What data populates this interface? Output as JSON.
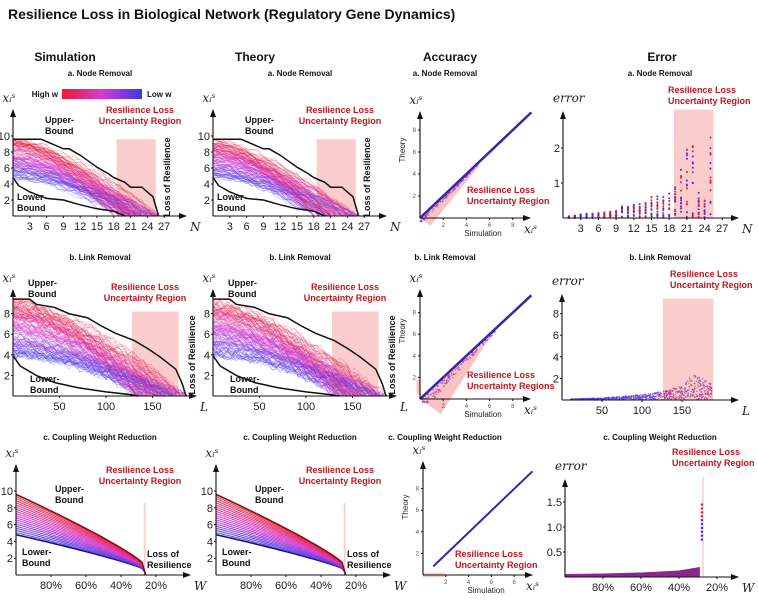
{
  "title": "Resilience Loss in Biological Network (Regulatory Gene Dynamics)",
  "columns": [
    "Simulation",
    "Theory",
    "Accuracy",
    "Error"
  ],
  "colors": {
    "high_w": "#ee1c2e",
    "mid_w": "#d63ad0",
    "low_w": "#3a3ae6",
    "uncertainty": "#f9c3c3",
    "annotation_red": "#c4141c"
  },
  "legend": {
    "high": "High w",
    "low": "Low w"
  },
  "labels": {
    "upper": [
      "Upper-",
      "Bound"
    ],
    "lower": [
      "Lower-",
      "Bound"
    ],
    "region": [
      "Resilience Loss",
      "Uncertainty Region"
    ],
    "region_plural": [
      "Resilience Loss",
      "Uncertainty Regions"
    ],
    "loss": "Loss of Resilience",
    "loss_lines": [
      "Loss of",
      "Resilience"
    ],
    "theory": "Theory",
    "simulation": "Simulation"
  },
  "chart_data": [
    {
      "type": "line",
      "column": "Simulation",
      "title": "a. Node Removal",
      "x_label": "N",
      "y_label": "xᵢˢ",
      "x_ticks": [
        3,
        6,
        9,
        12,
        15,
        18,
        21,
        24,
        27
      ],
      "y_ticks": [
        2,
        4,
        6,
        8,
        10
      ],
      "xlim": [
        0,
        28
      ],
      "ylim": [
        0,
        10.5
      ],
      "uncertainty_region": {
        "x": [
          18.5,
          25.5
        ],
        "y": [
          0,
          9.6
        ]
      },
      "upper_bound": [
        [
          0,
          9.6
        ],
        [
          5,
          9.6
        ],
        [
          6,
          9.3
        ],
        [
          9,
          8.4
        ],
        [
          10,
          8.4
        ],
        [
          12,
          7.6
        ],
        [
          14,
          6.6
        ],
        [
          15,
          6.1
        ],
        [
          17,
          5.3
        ],
        [
          18,
          4.8
        ],
        [
          20,
          4.2
        ],
        [
          21,
          3.6
        ],
        [
          23,
          3.6
        ],
        [
          25,
          2.4
        ],
        [
          26,
          0
        ]
      ],
      "lower_bound": [
        [
          0,
          4.8
        ],
        [
          1,
          3.8
        ],
        [
          3,
          3.0
        ],
        [
          6,
          2.2
        ],
        [
          9,
          2.0
        ],
        [
          12,
          1.4
        ],
        [
          15,
          0.9
        ],
        [
          18,
          0.6
        ],
        [
          19,
          0.3
        ],
        [
          20,
          0
        ]
      ]
    },
    {
      "type": "line",
      "column": "Theory",
      "title": "a. Node Removal",
      "x_label": "N",
      "y_label": "xᵢˢ",
      "x_ticks": [
        3,
        6,
        9,
        12,
        15,
        18,
        21,
        24,
        27
      ],
      "y_ticks": [
        2,
        4,
        6,
        8,
        10
      ],
      "xlim": [
        0,
        28
      ],
      "ylim": [
        0,
        10.5
      ],
      "uncertainty_region": {
        "x": [
          18.5,
          25.5
        ],
        "y": [
          0,
          9.6
        ]
      },
      "upper_bound": [
        [
          0,
          9.6
        ],
        [
          5,
          9.6
        ],
        [
          6,
          9.3
        ],
        [
          9,
          8.4
        ],
        [
          10,
          8.4
        ],
        [
          12,
          7.6
        ],
        [
          14,
          6.6
        ],
        [
          15,
          6.1
        ],
        [
          17,
          5.3
        ],
        [
          18,
          4.8
        ],
        [
          20,
          4.2
        ],
        [
          21,
          3.6
        ],
        [
          23,
          3.6
        ],
        [
          25,
          2.4
        ],
        [
          26,
          0
        ]
      ],
      "lower_bound": [
        [
          0,
          4.8
        ],
        [
          1,
          3.8
        ],
        [
          3,
          3.0
        ],
        [
          6,
          2.2
        ],
        [
          9,
          2.0
        ],
        [
          12,
          1.4
        ],
        [
          15,
          0.9
        ],
        [
          18,
          0.6
        ],
        [
          19,
          0.3
        ],
        [
          20,
          0
        ]
      ]
    },
    {
      "type": "scatter",
      "column": "Accuracy",
      "title": "a. Node Removal",
      "x_label": "xᵢˢ",
      "y_label": "xᵢˢ",
      "x_ticks": [
        2,
        4,
        6,
        8
      ],
      "y_ticks": [
        2,
        4,
        6,
        8
      ],
      "xlim": [
        0,
        9.6
      ],
      "ylim": [
        0,
        9.6
      ],
      "diagonal": [
        [
          0,
          0
        ],
        [
          9.6,
          9.6
        ]
      ],
      "uncertainty_region": [
        [
          0,
          0
        ],
        [
          5.3,
          5.0
        ],
        [
          0.9,
          -0.7
        ]
      ]
    },
    {
      "type": "scatter",
      "column": "Error",
      "title": "a. Node Removal",
      "x_label": "N",
      "y_label": "error",
      "x_ticks": [
        3,
        6,
        9,
        12,
        15,
        18,
        21,
        24,
        27
      ],
      "y_ticks": [
        1,
        2
      ],
      "xlim": [
        0,
        28
      ],
      "ylim": [
        0,
        3
      ],
      "uncertainty_region": {
        "x": [
          18.8,
          25.5
        ],
        "y": [
          0,
          3.1
        ]
      },
      "max_error_by_N": [
        0.05,
        0.07,
        0.1,
        0.12,
        0.12,
        0.14,
        0.16,
        0.18,
        0.2,
        0.33,
        0.32,
        0.38,
        0.4,
        0.43,
        0.6,
        0.62,
        0.6,
        0.7,
        0.88,
        1.38,
        1.95,
        2.05,
        0.72,
        0.5,
        2.3
      ]
    },
    {
      "type": "line",
      "column": "Simulation",
      "title": "b. Link Removal",
      "x_label": "L",
      "y_label": "xᵢˢ",
      "x_ticks": [
        50,
        100,
        150
      ],
      "y_ticks": [
        2,
        4,
        6,
        8
      ],
      "xlim": [
        0,
        195
      ],
      "ylim": [
        0,
        9.5
      ],
      "uncertainty_region": {
        "x": [
          128,
          178
        ],
        "y": [
          0,
          8.2
        ]
      },
      "upper_bound": [
        [
          0,
          9.4
        ],
        [
          18,
          9.4
        ],
        [
          25,
          8.9
        ],
        [
          45,
          8.6
        ],
        [
          60,
          8.0
        ],
        [
          80,
          7.6
        ],
        [
          95,
          6.8
        ],
        [
          110,
          6.1
        ],
        [
          130,
          5.4
        ],
        [
          145,
          4.6
        ],
        [
          158,
          3.8
        ],
        [
          168,
          3.1
        ],
        [
          175,
          2.6
        ],
        [
          182,
          1.2
        ],
        [
          186,
          0
        ]
      ],
      "lower_bound": [
        [
          0,
          3.9
        ],
        [
          8,
          2.9
        ],
        [
          25,
          2.0
        ],
        [
          45,
          1.3
        ],
        [
          70,
          0.8
        ],
        [
          100,
          0.4
        ],
        [
          125,
          0.15
        ],
        [
          135,
          0
        ]
      ]
    },
    {
      "type": "line",
      "column": "Theory",
      "title": "b. Link Removal",
      "x_label": "L",
      "y_label": "xᵢˢ",
      "x_ticks": [
        50,
        100,
        150
      ],
      "y_ticks": [
        2,
        4,
        6,
        8
      ],
      "xlim": [
        0,
        195
      ],
      "ylim": [
        0,
        9.5
      ],
      "uncertainty_region": {
        "x": [
          128,
          178
        ],
        "y": [
          0,
          8.2
        ]
      },
      "upper_bound": [
        [
          0,
          9.4
        ],
        [
          18,
          9.4
        ],
        [
          25,
          8.9
        ],
        [
          45,
          8.6
        ],
        [
          60,
          8.0
        ],
        [
          80,
          7.6
        ],
        [
          95,
          6.8
        ],
        [
          110,
          6.1
        ],
        [
          130,
          5.4
        ],
        [
          145,
          4.6
        ],
        [
          158,
          3.8
        ],
        [
          168,
          3.1
        ],
        [
          175,
          2.6
        ],
        [
          182,
          1.2
        ],
        [
          186,
          0
        ]
      ],
      "lower_bound": [
        [
          0,
          3.9
        ],
        [
          8,
          2.9
        ],
        [
          25,
          2.0
        ],
        [
          45,
          1.3
        ],
        [
          70,
          0.8
        ],
        [
          100,
          0.4
        ],
        [
          125,
          0.15
        ],
        [
          135,
          0
        ]
      ]
    },
    {
      "type": "scatter",
      "column": "Accuracy",
      "title": "b. Link Removal",
      "x_label": "xᵢˢ",
      "y_label": "xᵢˢ",
      "x_ticks": [
        2,
        4,
        6,
        8
      ],
      "y_ticks": [
        2,
        4,
        6,
        8
      ],
      "xlim": [
        0,
        9.6
      ],
      "ylim": [
        0,
        9.6
      ],
      "diagonal": [
        [
          0,
          0
        ],
        [
          9.6,
          9.6
        ]
      ],
      "uncertainty_region": [
        [
          0,
          0
        ],
        [
          6.0,
          5.7
        ],
        [
          1.8,
          -1.4
        ]
      ],
      "uncertainty_region_2": {
        "x": [
          -0.3,
          0
        ],
        "y": [
          0.4,
          1.8
        ]
      }
    },
    {
      "type": "scatter",
      "column": "Error",
      "title": "b. Link Removal",
      "x_label": "L",
      "y_label": "error",
      "x_ticks": [
        50,
        100,
        150
      ],
      "y_ticks": [
        2,
        4,
        6,
        8
      ],
      "xlim": [
        0,
        200
      ],
      "ylim": [
        0,
        9.5
      ],
      "uncertainty_region": {
        "x": [
          126,
          189
        ],
        "y": [
          0,
          9.4
        ]
      },
      "max_error_envelope": [
        [
          10,
          0.1
        ],
        [
          50,
          0.2
        ],
        [
          100,
          0.5
        ],
        [
          125,
          0.8
        ],
        [
          150,
          1.3
        ],
        [
          165,
          2.5
        ],
        [
          175,
          2.0
        ],
        [
          188,
          1.5
        ]
      ]
    },
    {
      "type": "line",
      "column": "Simulation",
      "title": "c. Coupling Weight Reduction",
      "x_label": "W",
      "y_label": "xᵢˢ",
      "x_ticks": [
        "80%",
        "60%",
        "40%",
        "20%"
      ],
      "x_tick_values": [
        80,
        60,
        40,
        20
      ],
      "y_ticks": [
        2,
        4,
        6,
        8,
        10
      ],
      "xlim": [
        100,
        15
      ],
      "ylim": [
        0,
        10.5
      ],
      "uncertainty_region": {
        "x": [
          26,
          27
        ],
        "y": [
          0,
          8.6
        ]
      },
      "start_values_range": [
        4.8,
        9.6
      ],
      "collapse_W": 26
    },
    {
      "type": "line",
      "column": "Theory",
      "title": "c. Coupling Weight Reduction",
      "x_label": "W",
      "y_label": "xᵢˢ",
      "x_ticks": [
        "80%",
        "60%",
        "40%",
        "20%"
      ],
      "x_tick_values": [
        80,
        60,
        40,
        20
      ],
      "y_ticks": [
        2,
        4,
        6,
        8,
        10
      ],
      "xlim": [
        100,
        15
      ],
      "ylim": [
        0,
        10.5
      ],
      "uncertainty_region": {
        "x": [
          26,
          27
        ],
        "y": [
          0,
          8.6
        ]
      },
      "start_values_range": [
        4.8,
        9.6
      ],
      "collapse_W": 26
    },
    {
      "type": "scatter",
      "column": "Accuracy",
      "title": "c. Coupling Weight Reduction",
      "x_label": "xᵢˢ",
      "y_label": "xᵢˢ",
      "x_ticks": [
        2,
        4,
        6,
        8
      ],
      "y_ticks": [
        2,
        4,
        6,
        8
      ],
      "xlim": [
        0,
        9.6
      ],
      "ylim": [
        0,
        9.6
      ],
      "diagonal": [
        [
          0.9,
          0.8
        ],
        [
          9.6,
          9.6
        ]
      ],
      "uncertainty_region": {
        "x": [
          0,
          1.9
        ],
        "y": [
          -0.2,
          0.2
        ]
      }
    },
    {
      "type": "scatter",
      "column": "Error",
      "title": "c. Coupling Weight Reduction",
      "x_label": "W",
      "y_label": "error",
      "x_ticks": [
        "80%",
        "60%",
        "40%",
        "20%"
      ],
      "x_tick_values": [
        80,
        60,
        40,
        20
      ],
      "y_ticks": [
        "0.5",
        "1.0",
        "1.5"
      ],
      "y_tick_values": [
        0.5,
        1.0,
        1.5
      ],
      "xlim": [
        100,
        15
      ],
      "ylim": [
        0,
        1.9
      ],
      "uncertainty_region": {
        "x": [
          27,
          27.8
        ],
        "y": [
          0,
          2.0
        ]
      },
      "error_band": [
        [
          100,
          0.06
        ],
        [
          80,
          0.07
        ],
        [
          60,
          0.09
        ],
        [
          40,
          0.13
        ],
        [
          29,
          0.2
        ]
      ],
      "spike": {
        "W": 28,
        "range": [
          0.75,
          1.45
        ]
      }
    }
  ]
}
